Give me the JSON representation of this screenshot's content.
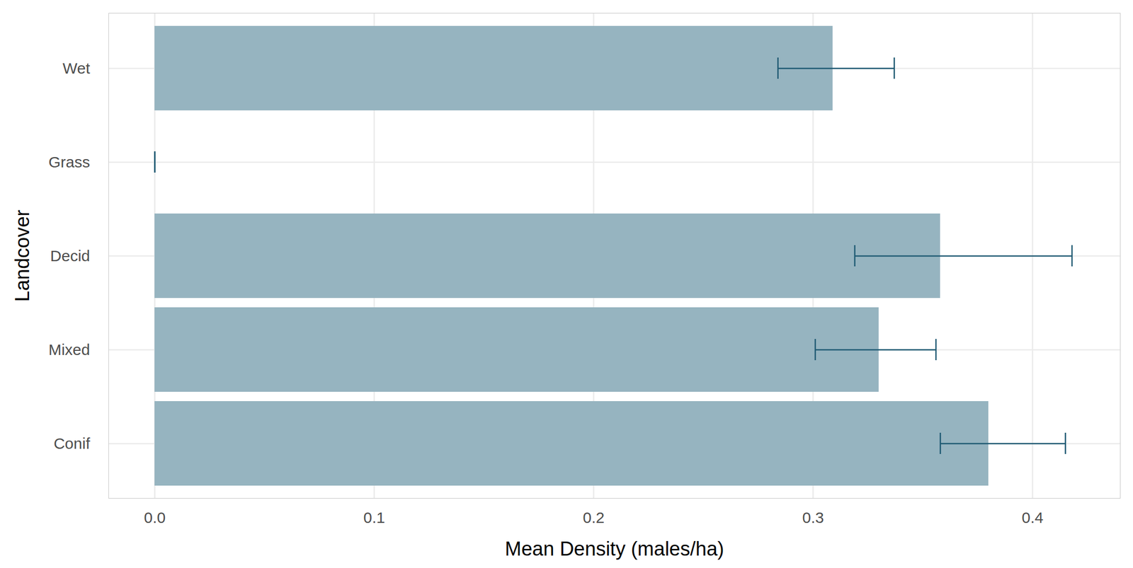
{
  "chart_data": {
    "type": "bar",
    "orientation": "horizontal",
    "x_label": "Mean Density (males/ha)",
    "y_label": "Landcover",
    "categories": [
      "Wet",
      "Grass",
      "Decid",
      "Mixed",
      "Conif"
    ],
    "values": [
      0.309,
      0,
      0.358,
      0.33,
      0.38
    ],
    "error_low": [
      0.284,
      0,
      0.319,
      0.301,
      0.358
    ],
    "error_high": [
      0.337,
      0,
      0.418,
      0.356,
      0.415
    ],
    "color": "#96b4c0",
    "xlim": [
      -0.021,
      0.44
    ],
    "xticks": [
      {
        "value": 0,
        "label": "0.0"
      },
      0.1,
      0.2,
      0.3,
      0.4
    ],
    "grid": true
  }
}
